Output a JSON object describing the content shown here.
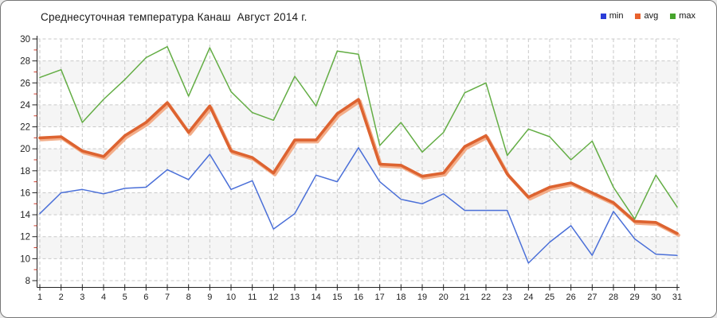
{
  "title": "Среднесуточная температура Канаш  Август 2014 г.",
  "legend": {
    "position": "top-right",
    "items": [
      {
        "label": "min",
        "swatch_color": "#2a3cd8"
      },
      {
        "label": "avg",
        "swatch_color": "#e8622d"
      },
      {
        "label": "max",
        "swatch_color": "#46a42c"
      }
    ]
  },
  "chart_data": {
    "type": "line",
    "title": "Среднесуточная температура Канаш  Август 2014 г.",
    "xlabel": "",
    "ylabel": "",
    "x": [
      1,
      2,
      3,
      4,
      5,
      6,
      7,
      8,
      9,
      10,
      11,
      12,
      13,
      14,
      15,
      16,
      17,
      18,
      19,
      20,
      21,
      22,
      23,
      24,
      25,
      26,
      27,
      28,
      29,
      30,
      31
    ],
    "ylim": [
      8,
      30
    ],
    "ytick_step": 2,
    "ytick_labels": [
      "8",
      "10",
      "12",
      "14",
      "16",
      "18",
      "20",
      "22",
      "24",
      "26",
      "28",
      "30"
    ],
    "grid": "dashed-both-axes",
    "plot_bands_alternating": true,
    "series": [
      {
        "name": "min",
        "color": "#4a6fd8",
        "width": 1.5,
        "values": [
          14.1,
          16.0,
          16.3,
          15.9,
          16.4,
          16.5,
          18.1,
          17.2,
          19.5,
          16.3,
          17.1,
          12.7,
          14.1,
          17.6,
          17.0,
          20.1,
          17.0,
          15.4,
          15.0,
          15.9,
          14.4,
          14.4,
          14.4,
          9.6,
          11.5,
          13.0,
          10.3,
          14.3,
          11.8,
          10.4,
          10.3
        ]
      },
      {
        "name": "avg",
        "color": "#dd6330",
        "width": 3.6,
        "halo_color": "#f3ae8a",
        "values": [
          21.0,
          21.1,
          19.8,
          19.3,
          21.2,
          22.4,
          24.2,
          21.5,
          23.9,
          19.8,
          19.2,
          17.8,
          20.8,
          20.8,
          23.2,
          24.5,
          18.6,
          18.5,
          17.5,
          17.8,
          20.2,
          21.2,
          17.7,
          15.6,
          16.5,
          16.9,
          16.0,
          15.1,
          13.4,
          13.3,
          12.3
        ]
      },
      {
        "name": "max",
        "color": "#63ad44",
        "width": 1.5,
        "values": [
          26.5,
          27.2,
          22.4,
          24.5,
          26.3,
          28.3,
          29.3,
          24.8,
          29.2,
          25.2,
          23.3,
          22.6,
          26.6,
          23.9,
          28.9,
          28.6,
          20.3,
          22.4,
          19.7,
          21.5,
          25.1,
          26.0,
          19.4,
          21.8,
          21.1,
          19.0,
          20.7,
          16.5,
          13.6,
          17.6,
          14.7
        ]
      }
    ]
  },
  "style": {
    "band_color_even": "#ffffff",
    "band_color_odd": "#f5f5f5",
    "grid_color": "#c9c9c9",
    "axis_color": "#222222",
    "y_minor_tick_color": "#cc3a2a",
    "tick_label_color": "#222222"
  }
}
